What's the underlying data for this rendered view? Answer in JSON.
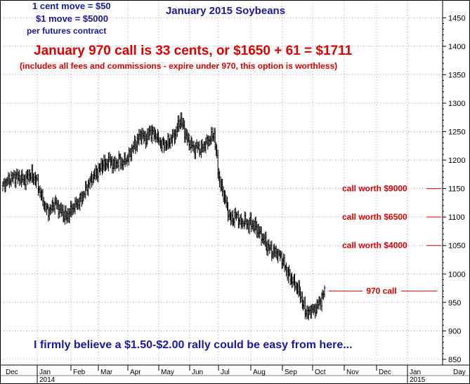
{
  "chart_data": {
    "type": "ohlc",
    "title": "January 2015 Soybeans",
    "colors": {
      "bars": "#000000",
      "annotation_red": "#e00000",
      "annotation_blue": "#1a1aa0",
      "grid": "#a0a0a0"
    },
    "ylim": [
      840,
      1480
    ],
    "y_ticks": [
      850,
      900,
      950,
      1000,
      1050,
      1100,
      1150,
      1200,
      1250,
      1300,
      1350,
      1400,
      1450
    ],
    "y_axis_position": "right",
    "grid": true,
    "x_axis": {
      "months": [
        "Dec",
        "Jan",
        "Feb",
        "Mar",
        "Apr",
        "May",
        "Jun",
        "Jul",
        "Aug",
        "Sep",
        "Oct",
        "Nov",
        "Dec",
        "Jan",
        "Day"
      ],
      "years": [
        "2014",
        "2015"
      ]
    },
    "price_path": [
      [
        0,
        1155
      ],
      [
        4,
        1162
      ],
      [
        8,
        1165
      ],
      [
        12,
        1168
      ],
      [
        16,
        1170
      ],
      [
        20,
        1170
      ],
      [
        24,
        1168
      ],
      [
        28,
        1165
      ],
      [
        32,
        1165
      ],
      [
        36,
        1170
      ],
      [
        40,
        1175
      ],
      [
        44,
        1170
      ],
      [
        48,
        1165
      ],
      [
        52,
        1150
      ],
      [
        56,
        1135
      ],
      [
        60,
        1120
      ],
      [
        64,
        1110
      ],
      [
        68,
        1112
      ],
      [
        72,
        1120
      ],
      [
        76,
        1125
      ],
      [
        80,
        1115
      ],
      [
        84,
        1110
      ],
      [
        88,
        1105
      ],
      [
        92,
        1100
      ],
      [
        96,
        1108
      ],
      [
        100,
        1115
      ],
      [
        104,
        1120
      ],
      [
        108,
        1125
      ],
      [
        112,
        1130
      ],
      [
        116,
        1140
      ],
      [
        120,
        1150
      ],
      [
        124,
        1160
      ],
      [
        128,
        1168
      ],
      [
        132,
        1175
      ],
      [
        136,
        1180
      ],
      [
        140,
        1185
      ],
      [
        144,
        1195
      ],
      [
        148,
        1190
      ],
      [
        152,
        1200
      ],
      [
        156,
        1195
      ],
      [
        160,
        1190
      ],
      [
        164,
        1195
      ],
      [
        168,
        1200
      ],
      [
        172,
        1195
      ],
      [
        176,
        1200
      ],
      [
        180,
        1205
      ],
      [
        184,
        1215
      ],
      [
        188,
        1225
      ],
      [
        192,
        1230
      ],
      [
        196,
        1240
      ],
      [
        200,
        1245
      ],
      [
        204,
        1235
      ],
      [
        208,
        1240
      ],
      [
        212,
        1250
      ],
      [
        216,
        1245
      ],
      [
        220,
        1245
      ],
      [
        224,
        1235
      ],
      [
        228,
        1230
      ],
      [
        232,
        1228
      ],
      [
        236,
        1230
      ],
      [
        240,
        1235
      ],
      [
        244,
        1240
      ],
      [
        248,
        1245
      ],
      [
        252,
        1260
      ],
      [
        256,
        1270
      ],
      [
        260,
        1255
      ],
      [
        264,
        1240
      ],
      [
        268,
        1230
      ],
      [
        272,
        1225
      ],
      [
        276,
        1220
      ],
      [
        280,
        1225
      ],
      [
        284,
        1220
      ],
      [
        288,
        1225
      ],
      [
        292,
        1230
      ],
      [
        296,
        1235
      ],
      [
        300,
        1240
      ],
      [
        304,
        1245
      ],
      [
        308,
        1200
      ],
      [
        312,
        1160
      ],
      [
        316,
        1145
      ],
      [
        320,
        1130
      ],
      [
        324,
        1110
      ],
      [
        328,
        1095
      ],
      [
        332,
        1100
      ],
      [
        336,
        1105
      ],
      [
        340,
        1095
      ],
      [
        344,
        1090
      ],
      [
        348,
        1095
      ],
      [
        352,
        1085
      ],
      [
        356,
        1090
      ],
      [
        360,
        1085
      ],
      [
        364,
        1080
      ],
      [
        368,
        1075
      ],
      [
        372,
        1065
      ],
      [
        376,
        1060
      ],
      [
        380,
        1050
      ],
      [
        384,
        1045
      ],
      [
        388,
        1040
      ],
      [
        392,
        1040
      ],
      [
        396,
        1035
      ],
      [
        400,
        1030
      ],
      [
        404,
        1020
      ],
      [
        408,
        1005
      ],
      [
        412,
        995
      ],
      [
        416,
        990
      ],
      [
        420,
        980
      ],
      [
        424,
        975
      ],
      [
        428,
        965
      ],
      [
        432,
        945
      ],
      [
        436,
        935
      ],
      [
        440,
        930
      ],
      [
        444,
        940
      ],
      [
        448,
        935
      ],
      [
        452,
        945
      ],
      [
        456,
        950
      ],
      [
        460,
        960
      ],
      [
        464,
        975
      ]
    ],
    "levels": [
      {
        "label": "call worth $9000",
        "value": 1150
      },
      {
        "label": "call worth $6500",
        "value": 1100
      },
      {
        "label": "call worth $4000",
        "value": 1050
      },
      {
        "label": "970 call",
        "value": 970
      }
    ],
    "annotations": {
      "move_line1": "1 cent move = $50",
      "move_line2": "$1 move = $5000",
      "move_line3": "per futures contract",
      "headline": "January 970 call is 33 cents, or $1650 + 61 = $1711",
      "subline": "(includes all fees and commissions - expire under 970, this option is worthless)",
      "footer": "I firmly believe a $1.50-$2.00 rally could be easy from here..."
    }
  }
}
